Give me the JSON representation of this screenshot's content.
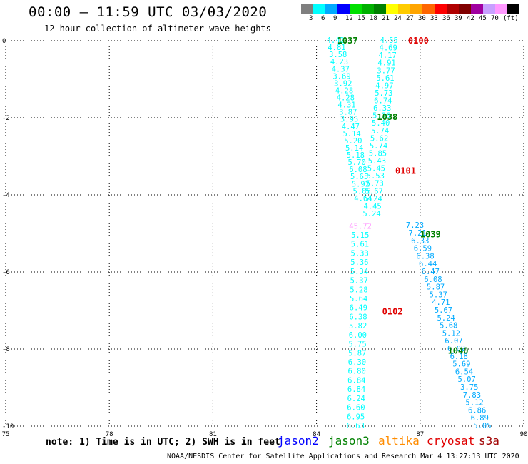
{
  "header": {
    "title": "00:00 – 11:59 UTC 03/03/2020",
    "subtitle": "12 hour collection of altimeter wave heights"
  },
  "colorbar": {
    "colors": [
      "#7f7f7f",
      "#00ffff",
      "#00aaff",
      "#0000ff",
      "#00e000",
      "#00b000",
      "#008000",
      "#ffff00",
      "#ffcc00",
      "#ffa500",
      "#ff6600",
      "#ff0000",
      "#b00000",
      "#800000",
      "#a000a0",
      "#c8a0ff",
      "#ff99ff",
      "#000000"
    ],
    "labels": [
      "3",
      "6",
      "9",
      "12",
      "15",
      "18",
      "21",
      "24",
      "27",
      "30",
      "33",
      "36",
      "39",
      "42",
      "45",
      "70",
      "(ft)"
    ]
  },
  "legend": {
    "note": "note: 1) Time is in UTC; 2) SWH is in feet",
    "satellites": [
      {
        "name": "jason2",
        "color": "#0000ff"
      },
      {
        "name": "jason3",
        "color": "#008000"
      },
      {
        "name": "altika",
        "color": "#ff8c00"
      },
      {
        "name": "cryosat",
        "color": "#e00000"
      },
      {
        "name": "s3a",
        "color": "#a00000"
      }
    ]
  },
  "footer": {
    "credit": "NOAA/NESDIS Center for Satellite Applications and Research    Mar  4 13:27:13 UTC 2020"
  },
  "chart_data": {
    "type": "scatter",
    "xlim": [
      75,
      90
    ],
    "ylim": [
      -10,
      0
    ],
    "xticks": [
      "75",
      "78",
      "81",
      "84",
      "87",
      "90"
    ],
    "yticks": [
      "0",
      "-2",
      "-4",
      "-6",
      "-8",
      "-10"
    ],
    "grid": true,
    "time_labels": [
      {
        "text": "1037",
        "x": 84.9,
        "y": 0,
        "color": "#008000"
      },
      {
        "text": "0100",
        "x": 86.95,
        "y": 0,
        "color": "#e00000"
      },
      {
        "text": "1038",
        "x": 86.05,
        "y": -1.98,
        "color": "#008000"
      },
      {
        "text": "0101",
        "x": 86.58,
        "y": -3.38,
        "color": "#e00000"
      },
      {
        "text": "1039",
        "x": 87.3,
        "y": -5.03,
        "color": "#008000"
      },
      {
        "text": "0102",
        "x": 86.2,
        "y": -7.03,
        "color": "#e00000"
      },
      {
        "text": "1040",
        "x": 88.1,
        "y": -8.05,
        "color": "#008000"
      }
    ],
    "series": [
      {
        "name": "cryosat",
        "color": "#00ffff",
        "x0": 84.55,
        "y0": 0.0,
        "x1": 85.35,
        "y1": -4.1,
        "values": [
          "4.42",
          "4.81",
          "3.58",
          "4.23",
          "4.37",
          "3.69",
          "3.92",
          "4.28",
          "4.28",
          "4.31",
          "3.87",
          "3.95",
          "4.47",
          "5.14",
          "5.20",
          "5.14",
          "5.18",
          "5.70",
          "6.08",
          "5.65",
          "5.92",
          "5.85",
          "4.64"
        ]
      },
      {
        "name": "jason3",
        "color": "#00ffff",
        "x0": 86.1,
        "y0": 0.0,
        "x1": 85.6,
        "y1": -4.5,
        "values": [
          "4.55",
          "4.69",
          "4.17",
          "4.91",
          "3.77",
          "5.61",
          "4.97",
          "5.73",
          "6.74",
          "6.33",
          "5.26",
          "5.40",
          "5.74",
          "5.62",
          "5.74",
          "5.85",
          "5.43",
          "5.45",
          "5.53",
          "5.73",
          "5.67",
          "5.24",
          "4.45",
          "5.24"
        ]
      },
      {
        "name": "altika",
        "color": "#00ffff",
        "x0": 85.27,
        "y0": -4.82,
        "x1": 85.13,
        "y1": -10.0,
        "values": [
          "45.72",
          "5.15",
          "5.61",
          "5.33",
          "5.36",
          "5.34",
          "5.37",
          "5.28",
          "5.64",
          "6.49",
          "6.38",
          "5.82",
          "6.00",
          "5.75",
          "5.87",
          "6.30",
          "6.80",
          "6.84",
          "6.84",
          "6.24",
          "6.60",
          "6.95",
          "6.63"
        ]
      },
      {
        "name": "jason3-b",
        "color": "#00aaff",
        "x0": 86.85,
        "y0": -4.8,
        "x1": 88.8,
        "y1": -10.0,
        "values": [
          "7.23",
          "7.21",
          "6.33",
          "6.59",
          "6.38",
          "6.44",
          "6.47",
          "6.08",
          "5.87",
          "5.37",
          "4.71",
          "5.67",
          "5.24",
          "5.68",
          "5.12",
          "6.07",
          "6.02",
          "6.18",
          "5.69",
          "6.54",
          "5.07",
          "3.75",
          "7.83",
          "5.12",
          "6.86",
          "6.89",
          "5.05"
        ]
      }
    ]
  }
}
